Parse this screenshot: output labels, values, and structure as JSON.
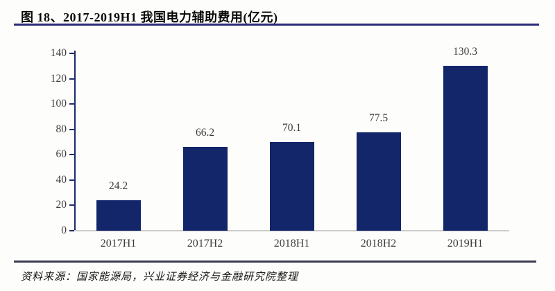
{
  "figure": {
    "title": "图 18、2017-2019H1 我国电力辅助费用(亿元)",
    "source": "资料来源：国家能源局，兴业证券经济与金融研究院整理"
  },
  "chart_data": {
    "type": "bar",
    "title": "2017-2019H1 我国电力辅助费用(亿元)",
    "categories": [
      "2017H1",
      "2017H2",
      "2018H1",
      "2018H2",
      "2019H1"
    ],
    "values": [
      24.2,
      66.2,
      70.1,
      77.5,
      130.3
    ],
    "value_labels": [
      "24.2",
      "66.2",
      "70.1",
      "77.5",
      "130.3"
    ],
    "xlabel": "",
    "ylabel": "",
    "ylim": [
      0,
      140
    ],
    "yticks": [
      0,
      20,
      40,
      60,
      80,
      100,
      120,
      140
    ],
    "grid": false,
    "legend": "none",
    "bar_color": "#13266a"
  },
  "colors": {
    "title_rule": "#2b2b78",
    "footer_rule": "#3b3b52",
    "baseline": "#cccccc",
    "tick_label": "#3d3d3d",
    "axis": "#1e2a6b"
  }
}
